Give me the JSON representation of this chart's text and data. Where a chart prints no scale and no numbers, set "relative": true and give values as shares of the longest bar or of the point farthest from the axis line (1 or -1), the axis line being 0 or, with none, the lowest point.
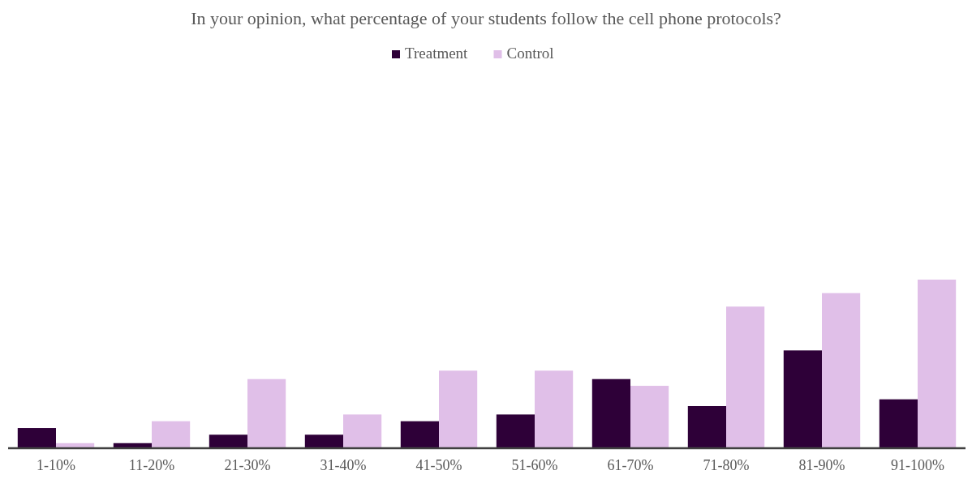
{
  "chart_data": {
    "type": "bar",
    "title": "In your opinion, what percentage of your students follow the cell phone protocols?",
    "categories": [
      "1-10%",
      "11-20%",
      "21-30%",
      "31-40%",
      "41-50%",
      "51-60%",
      "61-70%",
      "71-80%",
      "81-90%",
      "91-100%"
    ],
    "series": [
      {
        "name": "Treatment",
        "color": "#2e0038",
        "values": [
          0.12,
          0.03,
          0.08,
          0.08,
          0.16,
          0.2,
          0.41,
          0.25,
          0.58,
          0.29
        ]
      },
      {
        "name": "Control",
        "color": "#e0bfe8",
        "values": [
          0.03,
          0.16,
          0.41,
          0.2,
          0.46,
          0.46,
          0.37,
          0.84,
          0.92,
          1
        ]
      }
    ],
    "relative": true,
    "legend": "top"
  }
}
